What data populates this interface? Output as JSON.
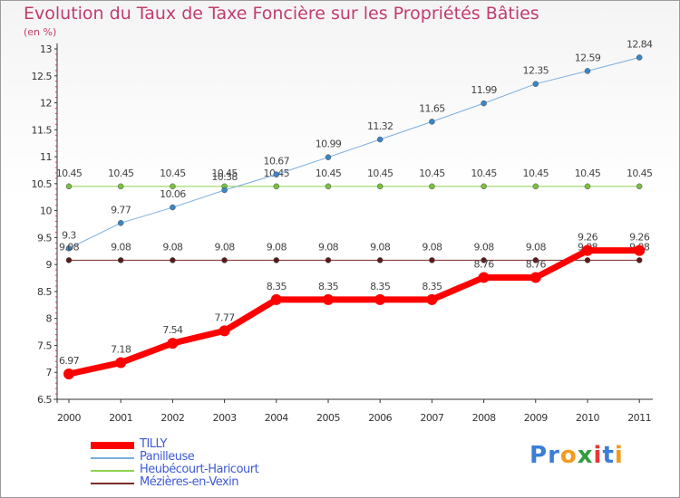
{
  "header": {
    "title": "Evolution du Taux de Taxe Foncière sur les Propriétés Bâties",
    "subtitle": "(en %)"
  },
  "logo": {
    "text": "Proxiti",
    "letters": [
      {
        "ch": "P",
        "color": "#3b7dd8"
      },
      {
        "ch": "r",
        "color": "#3b7dd8"
      },
      {
        "ch": "o",
        "color": "#f39a1e"
      },
      {
        "ch": "x",
        "color": "#2e9e3e"
      },
      {
        "ch": "i",
        "color": "#e53935"
      },
      {
        "ch": "t",
        "color": "#3b7dd8"
      },
      {
        "ch": "i",
        "color": "#f39a1e"
      }
    ]
  },
  "chart_data": {
    "type": "line",
    "title": "Evolution du Taux de Taxe Foncière sur les Propriétés Bâties",
    "ylabel": "(en %)",
    "xlabel": "",
    "x": [
      "2000",
      "2001",
      "2002",
      "2003",
      "2004",
      "2005",
      "2006",
      "2007",
      "2008",
      "2009",
      "2010",
      "2011"
    ],
    "ylim": [
      6.5,
      13
    ],
    "yticks": [
      "6.5",
      "7",
      "7.5",
      "8",
      "8.5",
      "9",
      "9.5",
      "10",
      "10.5",
      "11",
      "11.5",
      "12",
      "12.5",
      "13"
    ],
    "grid": false,
    "legend_position": "bottom-left",
    "series": [
      {
        "name": "Heubécourt-Haricourt",
        "color": "#8fd14f",
        "marker": "#7ac142",
        "width": 1,
        "values": [
          10.45,
          10.45,
          10.45,
          10.45,
          10.45,
          10.45,
          10.45,
          10.45,
          10.45,
          10.45,
          10.45,
          10.45
        ],
        "labels": [
          "10.45",
          "10.45",
          "10.45",
          "10.45",
          "10.45",
          "10.45",
          "10.45",
          "10.45",
          "10.45",
          "10.45",
          "10.45",
          "10.45"
        ]
      },
      {
        "name": "Panilleuse",
        "color": "#7aaee0",
        "marker": "#3b86c6",
        "width": 1,
        "values": [
          9.3,
          9.77,
          10.06,
          10.38,
          10.67,
          10.99,
          11.32,
          11.65,
          11.99,
          12.35,
          12.59,
          12.84
        ],
        "labels": [
          "9.3",
          "9.77",
          "10.06",
          "10.38",
          "10.67",
          "10.99",
          "11.32",
          "11.65",
          "11.99",
          "12.35",
          "12.59",
          "12.84"
        ]
      },
      {
        "name": "Mézières-en-Vexin",
        "color": "#7b2a2a",
        "marker": "#5a1a1a",
        "width": 1,
        "values": [
          9.08,
          9.08,
          9.08,
          9.08,
          9.08,
          9.08,
          9.08,
          9.08,
          9.08,
          9.08,
          9.08,
          9.08
        ],
        "labels": [
          "9.08",
          "9.08",
          "9.08",
          "9.08",
          "9.08",
          "9.08",
          "9.08",
          "9.08",
          "9.08",
          "9.08",
          "9.08",
          "9.08"
        ]
      },
      {
        "name": "TILLY",
        "color": "#ff0000",
        "marker": "#ff0000",
        "width": 7,
        "values": [
          6.97,
          7.18,
          7.54,
          7.77,
          8.35,
          8.35,
          8.35,
          8.35,
          8.76,
          8.76,
          9.26,
          9.26
        ],
        "labels": [
          "6.97",
          "7.18",
          "7.54",
          "7.77",
          "8.35",
          "8.35",
          "8.35",
          "8.35",
          "8.76",
          "8.76",
          "9.26",
          "9.26"
        ]
      }
    ]
  },
  "legend": {
    "items": [
      {
        "label": "TILLY",
        "color": "#ff0000",
        "thick": true
      },
      {
        "label": "Panilleuse",
        "color": "#7aaee0",
        "thick": false
      },
      {
        "label": "Heubécourt-Haricourt",
        "color": "#8fd14f",
        "thick": false
      },
      {
        "label": "Mézières-en-Vexin",
        "color": "#7b2a2a",
        "thick": false
      }
    ]
  }
}
